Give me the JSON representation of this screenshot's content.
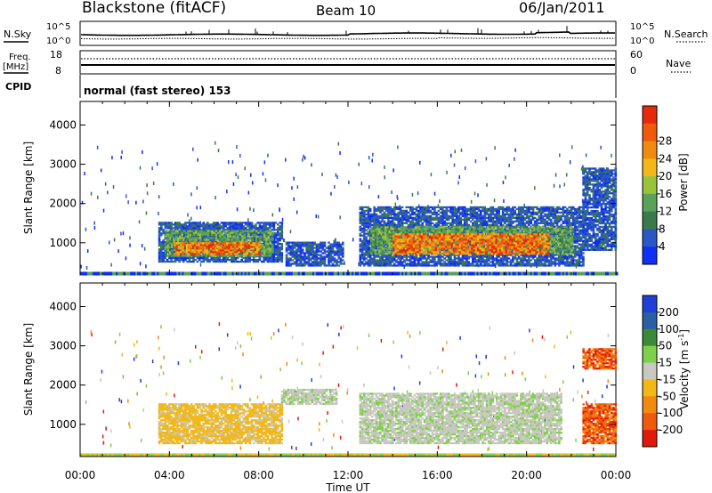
{
  "header": {
    "station": "Blackstone (fitACF)",
    "beam": "Beam 10",
    "date": "06/Jan/2011"
  },
  "top_panels": {
    "nsky_label": "N.Sky",
    "nsky_ticks": [
      "10^5",
      "10^0"
    ],
    "nsearch_label": "N.Search",
    "nsearch_ticks": [
      "10^5",
      "10^0"
    ],
    "freq_label": "Freq.",
    "freq_unit": "[MHz]",
    "freq_ticks": [
      "18",
      "8"
    ],
    "nave_label": "Nave",
    "nave_ticks": [
      "60",
      "0"
    ],
    "cpid_label": "CPID",
    "cpid_value": "normal (fast stereo) 153"
  },
  "chart_data": [
    {
      "type": "heatmap",
      "title": "",
      "xlabel": "",
      "ylabel": "Slant Range [km]",
      "x_ticks": [
        "00:00",
        "04:00",
        "08:00",
        "12:00",
        "16:00",
        "20:00",
        "00:00"
      ],
      "xlim_hours": [
        0,
        24
      ],
      "y_ticks": [
        "1000",
        "2000",
        "3000",
        "4000"
      ],
      "ylim": [
        180,
        4600
      ],
      "colorbar": {
        "label": "Power [dB]",
        "tick_labels": [
          "4",
          "8",
          "12",
          "16",
          "20",
          "24",
          "28"
        ],
        "range": [
          0,
          30
        ],
        "colors": [
          "#0f2ff5",
          "#2a56c6",
          "#3a7a4a",
          "#5aa25a",
          "#9ac23a",
          "#f3b817",
          "#f08a10",
          "#ef5a0c",
          "#e32a0a"
        ]
      },
      "regions": [
        {
          "t0": 3.5,
          "t1": 9.0,
          "r0": 500,
          "r1": 1500,
          "level": "low"
        },
        {
          "t0": 3.8,
          "t1": 8.6,
          "r0": 650,
          "r1": 1300,
          "level": "mid"
        },
        {
          "t0": 4.2,
          "t1": 8.0,
          "r0": 700,
          "r1": 1000,
          "level": "high"
        },
        {
          "t0": 9.2,
          "t1": 11.8,
          "r0": 400,
          "r1": 1000,
          "level": "low"
        },
        {
          "t0": 12.5,
          "t1": 22.5,
          "r0": 400,
          "r1": 1900,
          "level": "low"
        },
        {
          "t0": 13.0,
          "t1": 22.0,
          "r0": 700,
          "r1": 1400,
          "level": "mid"
        },
        {
          "t0": 14.0,
          "t1": 21.0,
          "r0": 700,
          "r1": 1200,
          "level": "high"
        },
        {
          "t0": 22.5,
          "t1": 24.0,
          "r0": 800,
          "r1": 2900,
          "level": "low"
        }
      ]
    },
    {
      "type": "heatmap",
      "title": "",
      "xlabel": "Time UT",
      "ylabel": "Slant Range [km]",
      "x_ticks": [
        "00:00",
        "04:00",
        "08:00",
        "12:00",
        "16:00",
        "20:00",
        "00:00"
      ],
      "xlim_hours": [
        0,
        24
      ],
      "y_ticks": [
        "1000",
        "2000",
        "3000",
        "4000"
      ],
      "ylim": [
        180,
        4600
      ],
      "colorbar": {
        "label": "Velocity [m s",
        "label_superscript": "-1",
        "label_close": "]",
        "tick_labels": [
          "200",
          "100",
          "50",
          "15",
          "-15",
          "-50",
          "-100",
          "-200"
        ],
        "colors": [
          "#1f3fd8",
          "#2b5fa3",
          "#3a8a3a",
          "#7ed04a",
          "#c8c8c0",
          "#f3b817",
          "#f08a10",
          "#ef5a0c",
          "#e01a0a"
        ]
      },
      "regions": [
        {
          "t0": 3.5,
          "t1": 9.0,
          "r0": 500,
          "r1": 1500,
          "velocity_class": "-15 to -50"
        },
        {
          "t0": 9.0,
          "t1": 11.5,
          "r0": 1500,
          "r1": 1900,
          "velocity_class": "-15 to 15"
        },
        {
          "t0": 12.5,
          "t1": 21.5,
          "r0": 500,
          "r1": 1800,
          "velocity_class": "-15 to 15"
        },
        {
          "t0": 22.5,
          "t1": 24.0,
          "r0": 500,
          "r1": 1500,
          "velocity_class": "-100 to -200"
        },
        {
          "t0": 22.5,
          "t1": 24.0,
          "r0": 2400,
          "r1": 2900,
          "velocity_class": "-100 to -200"
        }
      ]
    }
  ]
}
